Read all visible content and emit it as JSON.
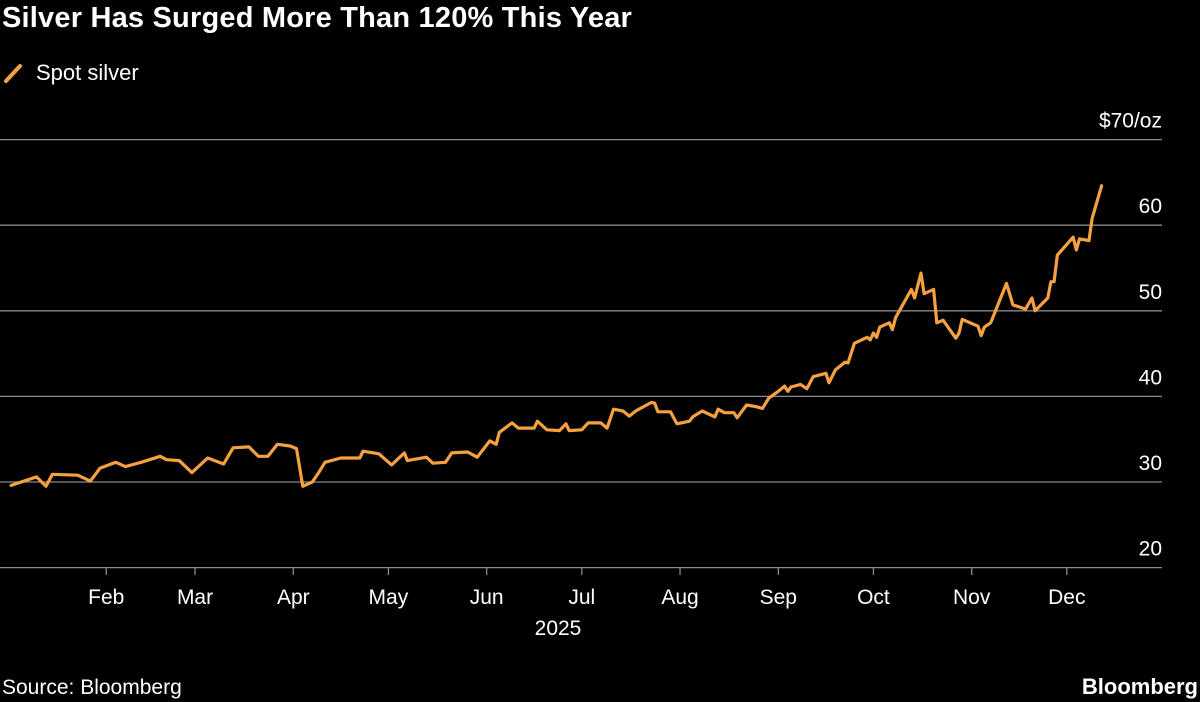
{
  "title": "Silver Has Surged More Than 120% This Year",
  "source": "Source: Bloomberg",
  "brand": "Bloomberg",
  "chart_data": {
    "type": "line",
    "title": "Silver Has Surged More Than 120% This Year",
    "ylabel": "",
    "xlabel": "2025",
    "y_unit_label": "$70/oz",
    "ylim": [
      20,
      70
    ],
    "y_ticks": [
      20,
      30,
      40,
      50,
      60,
      70
    ],
    "y_tick_labels": [
      "20",
      "30",
      "40",
      "50",
      "60",
      "$70/oz"
    ],
    "y_axis_side": "right",
    "xlim": [
      "2025-01-01",
      "2025-12-31"
    ],
    "x_ticks": [
      "2025-02-01",
      "2025-03-01",
      "2025-04-01",
      "2025-05-01",
      "2025-06-01",
      "2025-07-01",
      "2025-08-01",
      "2025-09-01",
      "2025-10-01",
      "2025-11-01",
      "2025-12-01"
    ],
    "x_tick_labels": [
      "Feb",
      "Mar",
      "Apr",
      "May",
      "Jun",
      "Jul",
      "Aug",
      "Sep",
      "Oct",
      "Nov",
      "Dec"
    ],
    "grid": "horizontal",
    "legend_position": "top-left",
    "series": [
      {
        "name": "Spot silver",
        "color": "#f5a142",
        "x": [
          "2025-01-02",
          "2025-01-10",
          "2025-01-13",
          "2025-01-15",
          "2025-01-23",
          "2025-01-27",
          "2025-01-30",
          "2025-02-04",
          "2025-02-07",
          "2025-02-12",
          "2025-02-18",
          "2025-02-20",
          "2025-02-24",
          "2025-02-28",
          "2025-03-05",
          "2025-03-10",
          "2025-03-13",
          "2025-03-18",
          "2025-03-21",
          "2025-03-24",
          "2025-03-27",
          "2025-03-31",
          "2025-04-02",
          "2025-04-04",
          "2025-04-07",
          "2025-04-09",
          "2025-04-11",
          "2025-04-16",
          "2025-04-22",
          "2025-04-23",
          "2025-04-28",
          "2025-05-02",
          "2025-05-06",
          "2025-05-07",
          "2025-05-13",
          "2025-05-15",
          "2025-05-19",
          "2025-05-21",
          "2025-05-26",
          "2025-05-29",
          "2025-06-02",
          "2025-06-04",
          "2025-06-05",
          "2025-06-09",
          "2025-06-11",
          "2025-06-16",
          "2025-06-17",
          "2025-06-20",
          "2025-06-24",
          "2025-06-26",
          "2025-06-27",
          "2025-07-01",
          "2025-07-03",
          "2025-07-07",
          "2025-07-09",
          "2025-07-11",
          "2025-07-14",
          "2025-07-16",
          "2025-07-18",
          "2025-07-23",
          "2025-07-24",
          "2025-07-25",
          "2025-07-29",
          "2025-07-31",
          "2025-08-04",
          "2025-08-05",
          "2025-08-08",
          "2025-08-12",
          "2025-08-13",
          "2025-08-15",
          "2025-08-18",
          "2025-08-19",
          "2025-08-22",
          "2025-08-25",
          "2025-08-27",
          "2025-08-29",
          "2025-09-01",
          "2025-09-03",
          "2025-09-04",
          "2025-09-05",
          "2025-09-08",
          "2025-09-10",
          "2025-09-12",
          "2025-09-16",
          "2025-09-17",
          "2025-09-19",
          "2025-09-22",
          "2025-09-23",
          "2025-09-25",
          "2025-09-29",
          "2025-09-30",
          "2025-10-01",
          "2025-10-02",
          "2025-10-03",
          "2025-10-06",
          "2025-10-07",
          "2025-10-08",
          "2025-10-13",
          "2025-10-14",
          "2025-10-16",
          "2025-10-17",
          "2025-10-20",
          "2025-10-21",
          "2025-10-23",
          "2025-10-27",
          "2025-10-28",
          "2025-10-29",
          "2025-11-03",
          "2025-11-04",
          "2025-11-05",
          "2025-11-07",
          "2025-11-12",
          "2025-11-14",
          "2025-11-18",
          "2025-11-20",
          "2025-11-21",
          "2025-11-25",
          "2025-11-26",
          "2025-11-27",
          "2025-11-28",
          "2025-12-03",
          "2025-12-04",
          "2025-12-05",
          "2025-12-08",
          "2025-12-09",
          "2025-12-12"
        ],
        "values": [
          29.6,
          30.6,
          29.5,
          30.9,
          30.8,
          30.1,
          31.6,
          32.3,
          31.8,
          32.3,
          33.0,
          32.6,
          32.5,
          31.1,
          32.8,
          32.1,
          34.0,
          34.1,
          33.0,
          33.0,
          34.4,
          34.2,
          33.9,
          29.5,
          30.0,
          31.1,
          32.3,
          32.8,
          32.8,
          33.6,
          33.3,
          32.0,
          33.4,
          32.5,
          32.9,
          32.2,
          32.3,
          33.4,
          33.5,
          32.9,
          34.8,
          34.4,
          35.8,
          36.9,
          36.3,
          36.3,
          37.1,
          36.1,
          36.0,
          36.8,
          36.0,
          36.1,
          36.9,
          36.9,
          36.3,
          38.5,
          38.3,
          37.7,
          38.3,
          39.3,
          39.2,
          38.2,
          38.2,
          36.8,
          37.1,
          37.6,
          38.3,
          37.6,
          38.5,
          38.1,
          38.1,
          37.5,
          39.0,
          38.8,
          38.6,
          39.8,
          40.6,
          41.2,
          40.6,
          41.1,
          41.4,
          40.9,
          42.3,
          42.7,
          41.6,
          43.1,
          44.0,
          43.9,
          46.2,
          46.9,
          46.6,
          47.4,
          46.9,
          48.1,
          48.6,
          47.8,
          49.2,
          52.5,
          51.5,
          54.4,
          52.0,
          52.5,
          48.6,
          48.9,
          46.8,
          47.4,
          49.0,
          48.2,
          47.1,
          48.1,
          48.6,
          53.2,
          50.7,
          50.2,
          51.5,
          50.0,
          51.5,
          53.4,
          53.4,
          56.5,
          58.6,
          57.1,
          58.4,
          58.2,
          60.8,
          64.6
        ]
      }
    ]
  }
}
